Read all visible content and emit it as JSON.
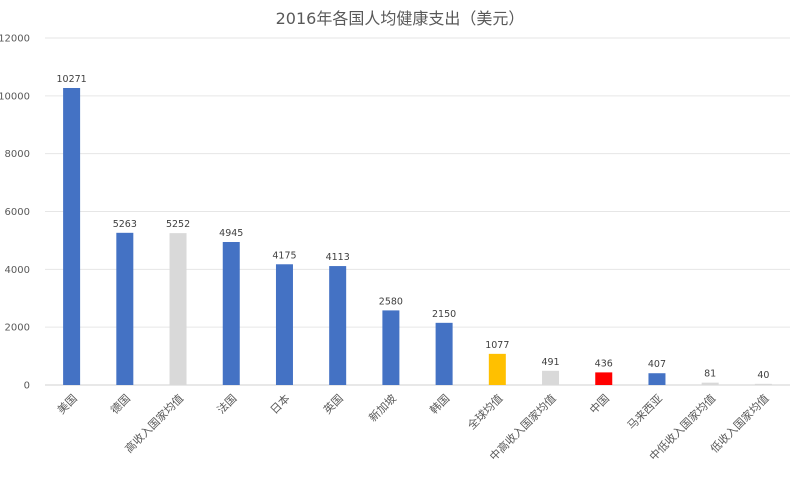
{
  "chart_data": {
    "type": "bar",
    "title": "2016年各国人均健康支出（美元）",
    "xlabel": "",
    "ylabel": "",
    "ylim": [
      0,
      12000
    ],
    "yticks": [
      0,
      2000,
      4000,
      6000,
      8000,
      10000,
      12000
    ],
    "grid": true,
    "legend": "none",
    "categories": [
      "美国",
      "德国",
      "高收入国家均值",
      "法国",
      "日本",
      "英国",
      "新加坡",
      "韩国",
      "全球均值",
      "中高收入国家均值",
      "中国",
      "马来西亚",
      "中低收入国家均值",
      "低收入国家均值"
    ],
    "values": [
      10271,
      5263,
      5252,
      4945,
      4175,
      4113,
      2580,
      2150,
      1077,
      491,
      436,
      407,
      81,
      40
    ],
    "colors": [
      "#4472C4",
      "#4472C4",
      "#D9D9D9",
      "#4472C4",
      "#4472C4",
      "#4472C4",
      "#4472C4",
      "#4472C4",
      "#FFC000",
      "#D9D9D9",
      "#FF0000",
      "#4472C4",
      "#D9D9D9",
      "#D9D9D9"
    ]
  }
}
